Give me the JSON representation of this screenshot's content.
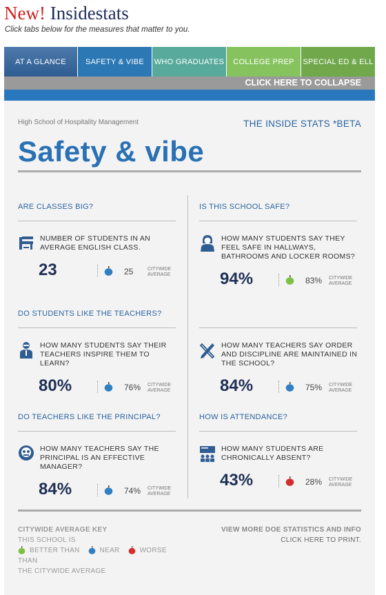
{
  "brand": {
    "new": "New!",
    "name": "Insidestats"
  },
  "tagline": "Click tabs below for the measures that matter to you.",
  "tabs": [
    {
      "label": "AT A GLANCE"
    },
    {
      "label": "SAFETY & VIBE"
    },
    {
      "label": "WHO GRADUATES"
    },
    {
      "label": "COLLEGE PREP"
    },
    {
      "label": "SPECIAL ED & ELL"
    }
  ],
  "collapse_label": "CLICK HERE TO COLLAPSE",
  "school_name": "High School of Hospitality Management",
  "beta_label": "THE INSIDE STATS *BETA",
  "page_title": "Safety & vibe",
  "citywide_label_line1": "CITYWIDE",
  "citywide_label_line2": "AVERAGE",
  "colors": {
    "better": "#7dc043",
    "near": "#2f7fc1",
    "worse": "#d22e2e",
    "accent": "#2a71b4"
  },
  "sections": {
    "classes": {
      "heading": "ARE CLASSES BIG?",
      "icon": "school-desk-icon",
      "description": "NUMBER OF STUDENTS IN AN AVERAGE ENGLISH CLASS.",
      "value": "23",
      "citywide": "25",
      "comparison": "near"
    },
    "safe": {
      "heading": "IS THIS SCHOOL SAFE?",
      "icon": "student-icon",
      "description": "HOW MANY STUDENTS SAY THEY FEEL SAFE IN HALLWAYS, BATHROOMS AND LOCKER ROOMS?",
      "value": "94%",
      "citywide": "83%",
      "comparison": "better"
    },
    "teachers": {
      "heading": "DO STUDENTS LIKE THE TEACHERS?",
      "icon": "teacher-icon",
      "description": "HOW MANY STUDENTS SAY THEIR TEACHERS INSPIRE THEM TO LEARN?",
      "value": "80%",
      "citywide": "76%",
      "comparison": "near"
    },
    "order": {
      "heading": "",
      "icon": "pencil-ruler-icon",
      "description": "HOW MANY TEACHERS SAY ORDER AND DISCIPLINE ARE MAINTAINED IN THE SCHOOL?",
      "value": "84%",
      "citywide": "75%",
      "comparison": "near"
    },
    "principal": {
      "heading": "DO TEACHERS LIKE THE PRINCIPAL?",
      "icon": "principal-icon",
      "description": "HOW MANY TEACHERS SAY THE PRINCIPAL IS AN EFFECTIVE MANAGER?",
      "value": "84%",
      "citywide": "74%",
      "comparison": "near"
    },
    "attendance": {
      "heading": "HOW IS ATTENDANCE?",
      "icon": "classroom-icon",
      "description": "HOW MANY STUDENTS ARE CHRONICALLY ABSENT?",
      "value": "43%",
      "citywide": "28%",
      "comparison": "worse"
    }
  },
  "key": {
    "title": "CITYWIDE AVERAGE KEY",
    "line1": "THIS SCHOOL IS",
    "better": "BETTER THAN",
    "near": "NEAR",
    "worse": "WORSE",
    "line_than": "THAN",
    "line_last": "THE CITYWIDE AVERAGE"
  },
  "doe_link": "VIEW MORE DOE STATISTICS AND INFO",
  "print_link": "CLICK HERE TO PRINT."
}
